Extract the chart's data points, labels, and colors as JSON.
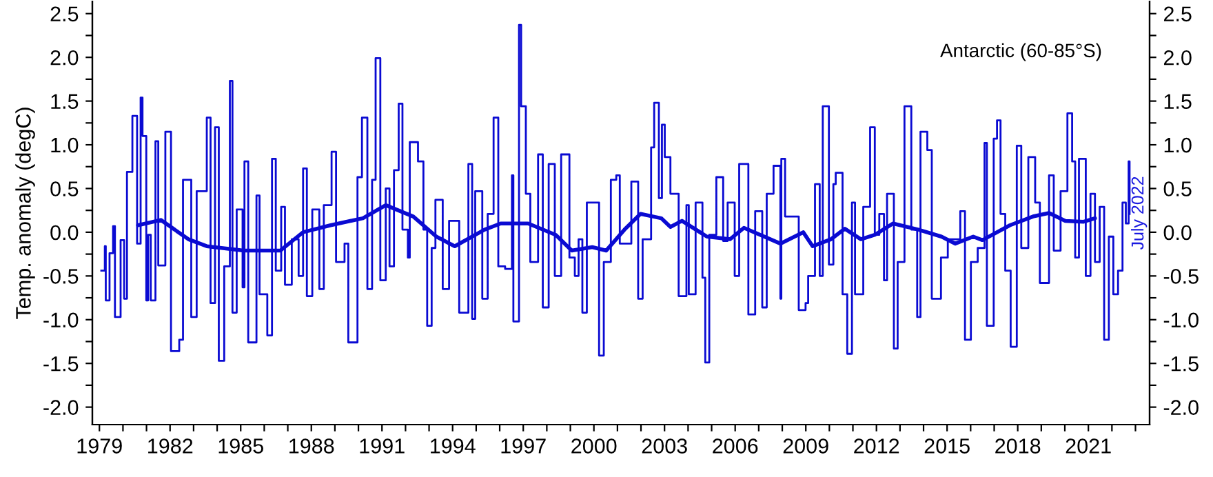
{
  "chart_data": {
    "type": "step",
    "ylabel": "Temp. anomaly (degC)",
    "annotations": [
      "Antarctic (60-85°S)",
      "July 2022"
    ],
    "xlim": [
      1978.7,
      2023.6
    ],
    "ylim": [
      -2.2,
      2.64
    ],
    "y2lim": [
      -2.2,
      2.64
    ],
    "xticks": [
      {
        "value": 1979,
        "label": "1979"
      },
      {
        "value": 1980,
        "label": null
      },
      {
        "value": 1981,
        "label": null
      },
      {
        "value": 1982,
        "label": "1982"
      },
      {
        "value": 1983,
        "label": null
      },
      {
        "value": 1984,
        "label": null
      },
      {
        "value": 1985,
        "label": "1985"
      },
      {
        "value": 1986,
        "label": null
      },
      {
        "value": 1987,
        "label": null
      },
      {
        "value": 1988,
        "label": "1988"
      },
      {
        "value": 1989,
        "label": null
      },
      {
        "value": 1990,
        "label": null
      },
      {
        "value": 1991,
        "label": "1991"
      },
      {
        "value": 1992,
        "label": null
      },
      {
        "value": 1993,
        "label": null
      },
      {
        "value": 1994,
        "label": "1994"
      },
      {
        "value": 1995,
        "label": null
      },
      {
        "value": 1996,
        "label": null
      },
      {
        "value": 1997,
        "label": "1997"
      },
      {
        "value": 1998,
        "label": null
      },
      {
        "value": 1999,
        "label": null
      },
      {
        "value": 2000,
        "label": "2000"
      },
      {
        "value": 2001,
        "label": null
      },
      {
        "value": 2002,
        "label": null
      },
      {
        "value": 2003,
        "label": "2003"
      },
      {
        "value": 2004,
        "label": null
      },
      {
        "value": 2005,
        "label": null
      },
      {
        "value": 2006,
        "label": "2006"
      },
      {
        "value": 2007,
        "label": null
      },
      {
        "value": 2008,
        "label": null
      },
      {
        "value": 2009,
        "label": "2009"
      },
      {
        "value": 2010,
        "label": null
      },
      {
        "value": 2011,
        "label": null
      },
      {
        "value": 2012,
        "label": "2012"
      },
      {
        "value": 2013,
        "label": null
      },
      {
        "value": 2014,
        "label": null
      },
      {
        "value": 2015,
        "label": "2015"
      },
      {
        "value": 2016,
        "label": null
      },
      {
        "value": 2017,
        "label": null
      },
      {
        "value": 2018,
        "label": "2018"
      },
      {
        "value": 2019,
        "label": null
      },
      {
        "value": 2020,
        "label": null
      },
      {
        "value": 2021,
        "label": "2021"
      },
      {
        "value": 2022,
        "label": null
      },
      {
        "value": 2023,
        "label": null
      }
    ],
    "yticks": [
      {
        "value": -2.0,
        "label": "-2.0"
      },
      {
        "value": -1.75,
        "label": null
      },
      {
        "value": -1.5,
        "label": "-1.5"
      },
      {
        "value": -1.25,
        "label": null
      },
      {
        "value": -1.0,
        "label": "-1.0"
      },
      {
        "value": -0.75,
        "label": null
      },
      {
        "value": -0.5,
        "label": "-0.5"
      },
      {
        "value": -0.25,
        "label": null
      },
      {
        "value": 0.0,
        "label": "0.0"
      },
      {
        "value": 0.25,
        "label": null
      },
      {
        "value": 0.5,
        "label": "0.5"
      },
      {
        "value": 0.75,
        "label": null
      },
      {
        "value": 1.0,
        "label": "1.0"
      },
      {
        "value": 1.25,
        "label": null
      },
      {
        "value": 1.5,
        "label": "1.5"
      },
      {
        "value": 1.75,
        "label": null
      },
      {
        "value": 2.0,
        "label": "2.0"
      },
      {
        "value": 2.25,
        "label": null
      },
      {
        "value": 2.5,
        "label": "2.5"
      }
    ],
    "y2ticks": [
      {
        "value": -2.0,
        "label": "-2.0"
      },
      {
        "value": -1.75,
        "label": null
      },
      {
        "value": -1.5,
        "label": "-1.5"
      },
      {
        "value": -1.25,
        "label": null
      },
      {
        "value": -1.0,
        "label": "-1.0"
      },
      {
        "value": -0.75,
        "label": null
      },
      {
        "value": -0.5,
        "label": "-0.5"
      },
      {
        "value": -0.25,
        "label": null
      },
      {
        "value": 0.0,
        "label": "0.0"
      },
      {
        "value": 0.25,
        "label": null
      },
      {
        "value": 0.5,
        "label": "0.5"
      },
      {
        "value": 0.75,
        "label": null
      },
      {
        "value": 1.0,
        "label": "1.0"
      },
      {
        "value": 1.25,
        "label": null
      },
      {
        "value": 1.5,
        "label": "1.5"
      },
      {
        "value": 1.75,
        "label": null
      },
      {
        "value": 2.0,
        "label": "2.0"
      },
      {
        "value": 2.25,
        "label": null
      },
      {
        "value": 2.5,
        "label": "2.5"
      }
    ],
    "series": [
      {
        "color": "#0a0ad2",
        "x": [
          1979.08,
          1979.23,
          1979.27,
          1979.43,
          1979.58,
          1979.66,
          1979.9,
          1980.05,
          1980.17,
          1980.4,
          1980.6,
          1980.75,
          1980.83,
          1980.99,
          1981.07,
          1981.18,
          1981.38,
          1981.5,
          1981.8,
          1982.04,
          1982.39,
          1982.55,
          1982.9,
          1983.13,
          1983.56,
          1983.72,
          1983.91,
          1984.07,
          1984.3,
          1984.54,
          1984.65,
          1984.83,
          1985.08,
          1985.16,
          1985.32,
          1985.67,
          1985.8,
          1986.13,
          1986.33,
          1986.49,
          1986.72,
          1986.88,
          1987.17,
          1987.46,
          1987.65,
          1987.81,
          1988.04,
          1988.34,
          1988.53,
          1988.86,
          1989.05,
          1989.41,
          1989.57,
          1989.96,
          1990.15,
          1990.38,
          1990.58,
          1990.73,
          1990.93,
          1991.16,
          1991.32,
          1991.51,
          1991.71,
          1991.87,
          1992.1,
          1992.18,
          1992.53,
          1992.76,
          1992.92,
          1993.11,
          1993.27,
          1993.58,
          1993.85,
          1994.28,
          1994.67,
          1994.83,
          1994.96,
          1995.26,
          1995.49,
          1995.74,
          1995.94,
          1996.23,
          1996.52,
          1996.58,
          1996.82,
          1996.91,
          1997.11,
          1997.3,
          1997.63,
          1997.83,
          1998.08,
          1998.34,
          1998.61,
          1998.96,
          1999.19,
          1999.35,
          1999.51,
          1999.7,
          1999.93,
          2000.22,
          2000.42,
          2000.72,
          2000.95,
          2001.1,
          2001.59,
          2001.88,
          2002.07,
          2002.43,
          2002.56,
          2002.76,
          2002.89,
          2003.01,
          2003.25,
          2003.6,
          2003.93,
          2004.03,
          2004.32,
          2004.61,
          2004.73,
          2004.9,
          2005.2,
          2005.49,
          2005.68,
          2005.98,
          2006.17,
          2006.56,
          2006.85,
          2007.15,
          2007.34,
          2007.63,
          2007.92,
          2007.96,
          2008.12,
          2008.7,
          2008.99,
          2009.1,
          2009.39,
          2009.59,
          2009.72,
          2009.98,
          2010.17,
          2010.27,
          2010.56,
          2010.76,
          2010.96,
          2011.09,
          2011.44,
          2011.73,
          2011.93,
          2012.12,
          2012.32,
          2012.45,
          2012.74,
          2012.9,
          2013.19,
          2013.48,
          2013.73,
          2013.87,
          2014.16,
          2014.35,
          2014.74,
          2015.03,
          2015.56,
          2015.76,
          2016.01,
          2016.3,
          2016.59,
          2016.69,
          2016.98,
          2017.12,
          2017.27,
          2017.47,
          2017.7,
          2017.96,
          2018.15,
          2018.45,
          2018.74,
          2018.94,
          2019.33,
          2019.53,
          2019.82,
          2020.11,
          2020.31,
          2020.44,
          2020.6,
          2020.89,
          2021.09,
          2021.28,
          2021.48,
          2021.67,
          2021.87,
          2022.06,
          2022.26,
          2022.45,
          2022.59,
          2022.71,
          2022.75
        ],
        "values": [
          -0.44,
          -0.16,
          -0.78,
          -0.24,
          0.07,
          -0.97,
          -0.09,
          -0.76,
          0.69,
          1.33,
          -0.13,
          1.54,
          1.1,
          -0.78,
          -0.03,
          -0.78,
          1.04,
          -0.38,
          1.15,
          -1.36,
          -1.23,
          0.6,
          -0.97,
          0.47,
          1.31,
          -0.81,
          1.2,
          -1.47,
          -0.39,
          1.73,
          -0.92,
          0.26,
          -0.63,
          0.81,
          -1.26,
          0.42,
          -0.71,
          -1.18,
          0.84,
          -0.44,
          0.29,
          -0.6,
          -0.08,
          -0.5,
          0.73,
          -0.73,
          0.26,
          -0.65,
          0.31,
          0.92,
          -0.34,
          -0.13,
          -1.26,
          0.63,
          1.31,
          -0.65,
          0.6,
          1.99,
          -0.55,
          0.5,
          -0.39,
          0.71,
          1.47,
          0.03,
          -0.29,
          1.03,
          0.81,
          0.03,
          -1.07,
          -0.18,
          0.37,
          -0.65,
          0.13,
          -0.92,
          0.78,
          -0.99,
          0.47,
          -0.76,
          0.21,
          1.31,
          -0.39,
          -0.42,
          0.65,
          -1.02,
          2.37,
          1.44,
          0.44,
          -0.34,
          0.89,
          -0.86,
          0.78,
          -0.5,
          0.89,
          -0.29,
          -0.5,
          -0.08,
          -0.92,
          0.34,
          0.34,
          -1.41,
          -0.34,
          0.6,
          0.65,
          -0.13,
          0.58,
          -0.76,
          -0.08,
          0.97,
          1.48,
          0.39,
          1.23,
          0.86,
          0.44,
          -0.73,
          0.31,
          -0.71,
          0.34,
          -0.52,
          -1.49,
          -0.03,
          0.63,
          -0.1,
          0.34,
          -0.5,
          0.78,
          -0.94,
          0.24,
          -0.86,
          0.44,
          0.76,
          -0.76,
          0.84,
          0.18,
          -0.89,
          -0.81,
          -0.5,
          0.55,
          -0.5,
          1.44,
          -0.37,
          0.55,
          0.68,
          -0.71,
          -1.39,
          0.34,
          -0.71,
          0.29,
          1.2,
          -0.03,
          0.21,
          -0.55,
          0.44,
          -1.33,
          -0.34,
          1.44,
          0.03,
          -0.97,
          1.15,
          0.94,
          -0.76,
          -0.29,
          -0.08,
          0.24,
          -1.23,
          -0.34,
          -0.18,
          1.02,
          -1.07,
          1.07,
          1.28,
          0.21,
          -0.44,
          -1.31,
          0.99,
          -0.18,
          0.86,
          0.34,
          -0.58,
          0.65,
          -0.21,
          0.47,
          1.36,
          0.81,
          -0.29,
          0.84,
          -0.5,
          0.44,
          -0.34,
          0.29,
          -1.23,
          -0.05,
          -0.71,
          -0.44,
          0.34,
          0.1,
          0.81,
          0.21
        ]
      },
      {
        "type": "line",
        "color": "#0a0ad2",
        "x": [
          1980.64,
          1981.61,
          1982.78,
          1983.56,
          1985.12,
          1986.68,
          1987.65,
          1988.82,
          1990.19,
          1991.16,
          1992.33,
          1993.31,
          1994.09,
          1995.36,
          1996.04,
          1997.21,
          1998.38,
          1999.06,
          1999.93,
          2000.52,
          2001.3,
          2001.98,
          2002.86,
          2003.25,
          2003.74,
          2004.8,
          2005.78,
          2006.37,
          2007.92,
          2008.89,
          2009.29,
          2010.07,
          2010.66,
          2011.34,
          2011.93,
          2012.71,
          2013.78,
          2014.76,
          2015.35,
          2016.11,
          2016.5,
          2017.67,
          2018.65,
          2019.33,
          2020.02,
          2020.8,
          2021.28
        ],
        "values": [
          0.08,
          0.14,
          -0.08,
          -0.16,
          -0.21,
          -0.21,
          0.0,
          0.08,
          0.16,
          0.31,
          0.18,
          -0.05,
          -0.16,
          0.03,
          0.1,
          0.1,
          -0.03,
          -0.21,
          -0.17,
          -0.21,
          0.03,
          0.21,
          0.16,
          0.06,
          0.13,
          -0.05,
          -0.08,
          0.05,
          -0.13,
          0.0,
          -0.16,
          -0.08,
          0.04,
          -0.08,
          -0.03,
          0.1,
          0.03,
          -0.05,
          -0.13,
          -0.05,
          -0.09,
          0.08,
          0.18,
          0.22,
          0.13,
          0.12,
          0.16
        ]
      }
    ]
  }
}
